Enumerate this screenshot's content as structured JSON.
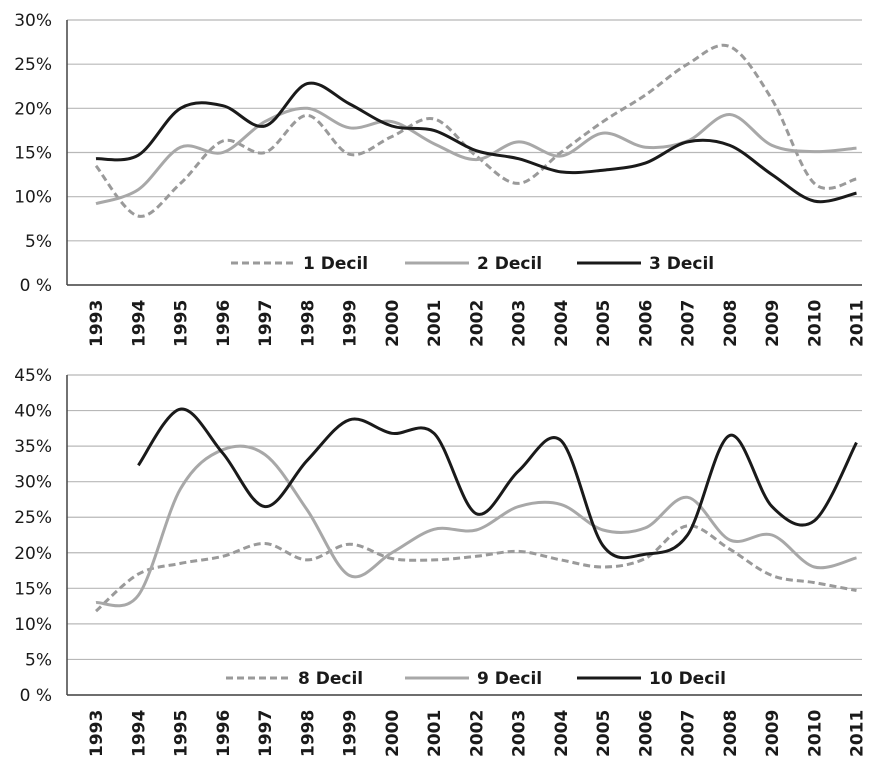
{
  "chart_data": [
    {
      "type": "line",
      "x": [
        "1993",
        "1994",
        "1995",
        "1996",
        "1997",
        "1998",
        "1999",
        "2000",
        "2001",
        "2002",
        "2003",
        "2004",
        "2005",
        "2006",
        "2007",
        "2008",
        "2009",
        "2010",
        "2011"
      ],
      "ylim": [
        0,
        30
      ],
      "yticks": [
        0,
        5,
        10,
        15,
        20,
        25,
        30
      ],
      "yticklabels": [
        "0 %",
        "5%",
        "10%",
        "15%",
        "20%",
        "25%",
        "30%"
      ],
      "grid": true,
      "legend": "bottom",
      "series": [
        {
          "name": "1 Decil",
          "style": "dashed",
          "color": "#9a9a9a",
          "values": [
            13.5,
            7.8,
            11.5,
            16.3,
            15,
            19.2,
            14.8,
            16.8,
            18.8,
            14.6,
            11.5,
            15,
            18.5,
            21.5,
            25,
            27,
            21,
            11.5,
            12
          ]
        },
        {
          "name": "2 Decil",
          "style": "solid",
          "color": "#a8a8a8",
          "values": [
            9.2,
            10.8,
            15.6,
            15,
            18.5,
            20,
            17.8,
            18.5,
            16,
            14.2,
            16.2,
            14.6,
            17.2,
            15.6,
            16.3,
            19.3,
            15.8,
            15.1,
            15.5
          ]
        },
        {
          "name": "3 Decil",
          "style": "solid",
          "color": "#1a1a1a",
          "values": [
            14.3,
            14.7,
            20,
            20.3,
            18,
            22.8,
            20.5,
            18,
            17.5,
            15.2,
            14.3,
            12.8,
            13,
            13.8,
            16.2,
            15.8,
            12.5,
            9.5,
            10.4
          ]
        }
      ]
    },
    {
      "type": "line",
      "x": [
        "1993",
        "1994",
        "1995",
        "1996",
        "1997",
        "1998",
        "1999",
        "2000",
        "2001",
        "2002",
        "2003",
        "2004",
        "2005",
        "2006",
        "2007",
        "2008",
        "2009",
        "2010",
        "2011"
      ],
      "ylim": [
        0,
        45
      ],
      "yticks": [
        0,
        5,
        10,
        15,
        20,
        25,
        30,
        35,
        40,
        45
      ],
      "yticklabels": [
        "0 %",
        "5%",
        "10%",
        "15%",
        "20%",
        "25%",
        "30%",
        "35%",
        "40%",
        "45%"
      ],
      "grid": true,
      "legend": "bottom",
      "series": [
        {
          "name": "8 Decil",
          "style": "dashed",
          "color": "#9a9a9a",
          "values": [
            11.8,
            17,
            18.5,
            19.5,
            21.3,
            19,
            21.2,
            19.2,
            19,
            19.5,
            20.2,
            19,
            18,
            19.2,
            23.8,
            20.5,
            16.8,
            15.8,
            14.7
          ]
        },
        {
          "name": "9 Decil",
          "style": "solid",
          "color": "#a8a8a8",
          "values": [
            13,
            14,
            29,
            34.5,
            33.8,
            26,
            16.8,
            20,
            23.3,
            23.2,
            26.5,
            26.8,
            23.2,
            23.5,
            27.8,
            21.8,
            22.5,
            18,
            19.3
          ]
        },
        {
          "name": "10 Decil",
          "style": "solid",
          "color": "#1a1a1a",
          "values": [
            null,
            32.3,
            40.2,
            34,
            26.5,
            33,
            38.7,
            36.8,
            36.8,
            25.5,
            31.5,
            35.8,
            21,
            19.8,
            22.5,
            36.5,
            26.5,
            24.5,
            35.5
          ]
        }
      ]
    }
  ]
}
